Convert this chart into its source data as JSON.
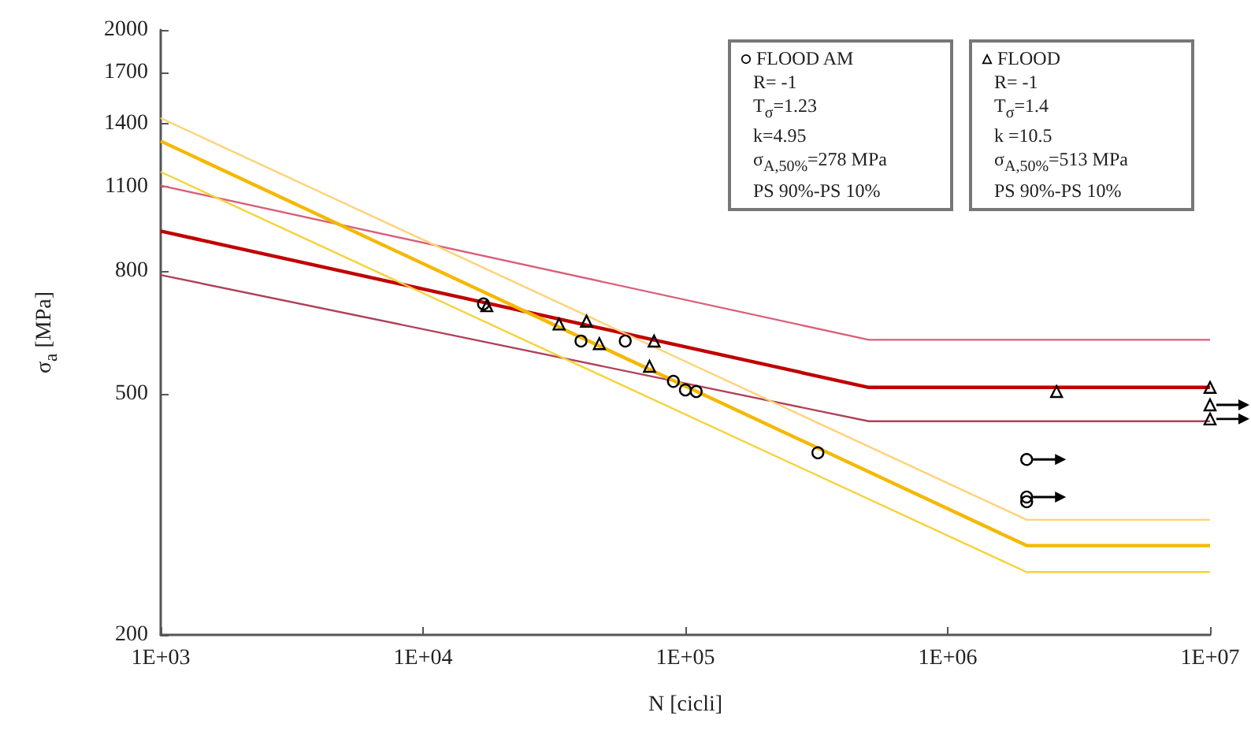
{
  "chart_data": {
    "type": "scatter",
    "xlabel": "N [cicli]",
    "ylabel": "σ$_{a}$ [MPa]",
    "log": "xy",
    "xlim": [
      1000,
      10000000
    ],
    "xticks": [
      {
        "value": 1000,
        "label": "1E+03"
      },
      {
        "value": 10000,
        "label": "1E+04"
      },
      {
        "value": 100000,
        "label": "1E+05"
      },
      {
        "value": 1000000,
        "label": "1E+06"
      },
      {
        "value": 10000000,
        "label": "1E+07"
      }
    ],
    "ylim": [
      200,
      2000
    ],
    "yticks": [
      200,
      500,
      800,
      1100,
      1400,
      1700,
      2000
    ],
    "grid": false,
    "legend": "top right",
    "annotations": [
      "R= -1",
      "T$_{σ}$=1.23",
      "k=4.95",
      "σ$_{A,50%}$=278 MPa",
      "PS 90%-PS 10%",
      "R= -1",
      "T$_{σ}$=1.4",
      "k =10.5",
      "σ$_{A,50%}$=513 MPa",
      "PS 90%-PS 10%"
    ],
    "series": [
      {
        "name": "FLOOD AM",
        "marker": "circle",
        "color": "#000000",
        "x": [
          17000,
          40000,
          59000,
          90000,
          100000,
          110000,
          320000,
          2000000,
          2000000,
          2000000
        ],
        "values": [
          705,
          612,
          612,
          525,
          508,
          505,
          400,
          390,
          338,
          332
        ]
      },
      {
        "name": "FLOOD",
        "marker": "triangle",
        "color": "#000000",
        "x": [
          17500,
          33000,
          42000,
          47000,
          76000,
          73000,
          2600000,
          10000000,
          10000000,
          10000000
        ],
        "values": [
          700,
          653,
          660,
          606,
          612,
          556,
          505,
          513,
          480,
          455
        ]
      },
      {
        "type": "line",
        "color": "#c00000",
        "x": [
          1000,
          500000,
          10000000
        ],
        "values": [
          930,
          513,
          513
        ]
      },
      {
        "type": "line",
        "color": "#d9607a",
        "x": [
          1000,
          500000,
          10000000
        ],
        "values": [
          1106,
          615,
          615
        ]
      },
      {
        "type": "line",
        "color": "#b0405a",
        "x": [
          1000,
          500000,
          10000000
        ],
        "values": [
          787,
          451,
          451
        ]
      },
      {
        "type": "line",
        "color": "#f5b800",
        "x": [
          1000,
          2000000,
          10000000
        ],
        "values": [
          1310,
          281,
          281
        ]
      },
      {
        "type": "line",
        "color": "#ffd27a",
        "x": [
          1000,
          2000000,
          10000000
        ],
        "values": [
          1430,
          310,
          310
        ]
      },
      {
        "type": "line",
        "color": "#f7d23a",
        "x": [
          1000,
          2000000,
          10000000
        ],
        "values": [
          1165,
          254,
          254
        ]
      }
    ]
  }
}
